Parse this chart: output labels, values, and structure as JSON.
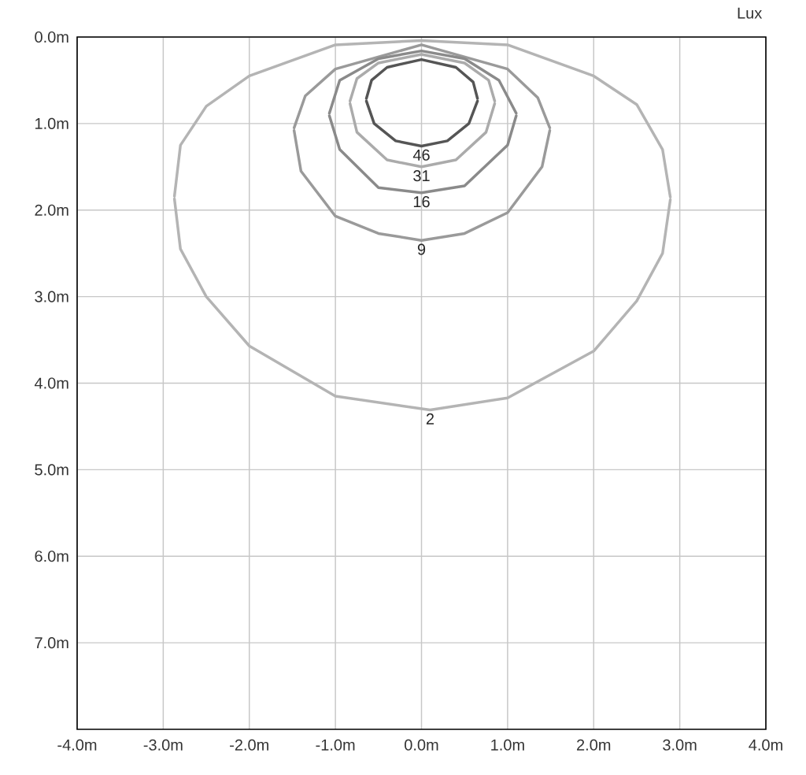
{
  "chart_data": {
    "type": "line",
    "annotations": [
      "Lux"
    ],
    "xlim": [
      -4,
      4
    ],
    "ylim": [
      8,
      0
    ],
    "xticks": [
      {
        "value": -4,
        "label": "-4.0m"
      },
      {
        "value": -3,
        "label": "-3.0m"
      },
      {
        "value": -2,
        "label": "-2.0m"
      },
      {
        "value": -1,
        "label": "-1.0m"
      },
      {
        "value": 0,
        "label": "0.0m"
      },
      {
        "value": 1,
        "label": "1.0m"
      },
      {
        "value": 2,
        "label": "2.0m"
      },
      {
        "value": 3,
        "label": "3.0m"
      },
      {
        "value": 4,
        "label": "4.0m"
      }
    ],
    "yticks": [
      {
        "value": 0,
        "label": "0.0m"
      },
      {
        "value": 1,
        "label": "1.0m"
      },
      {
        "value": 2,
        "label": "2.0m"
      },
      {
        "value": 3,
        "label": "3.0m"
      },
      {
        "value": 4,
        "label": "4.0m"
      },
      {
        "value": 5,
        "label": "5.0m"
      },
      {
        "value": 6,
        "label": "6.0m"
      },
      {
        "value": 7,
        "label": "7.0m"
      }
    ],
    "grid": true,
    "series": [
      {
        "color": "#b4b4b4",
        "x": [
          -2.87,
          -2.8,
          -2.5,
          -2,
          -1,
          0,
          1,
          2,
          2.5,
          2.8,
          2.89
        ],
        "values": [
          1.84,
          1.25,
          0.8,
          0.45,
          0.09,
          0.04,
          0.09,
          0.45,
          0.78,
          1.3,
          1.85
        ]
      },
      {
        "name": "2",
        "color": "#b4b4b4",
        "x": [
          -2.87,
          -2.8,
          -2.5,
          -2,
          -1,
          0.1,
          1,
          2,
          2.5,
          2.8,
          2.89
        ],
        "values": [
          1.87,
          2.45,
          3.0,
          3.57,
          4.15,
          4.31,
          4.17,
          3.63,
          3.05,
          2.5,
          1.88
        ]
      },
      {
        "color": "#9a9a9a",
        "x": [
          -1.48,
          -1.35,
          -1,
          0,
          1,
          1.35,
          1.49
        ],
        "values": [
          1.05,
          0.68,
          0.37,
          0.09,
          0.37,
          0.7,
          1.05
        ]
      },
      {
        "name": "9",
        "color": "#9a9a9a",
        "x": [
          -1.48,
          -1.4,
          -1,
          -0.5,
          0,
          0.5,
          1,
          1.4,
          1.49
        ],
        "values": [
          1.08,
          1.55,
          2.07,
          2.27,
          2.35,
          2.27,
          2.03,
          1.5,
          1.08
        ]
      },
      {
        "color": "#8a8a8a",
        "x": [
          -1.07,
          -0.95,
          -0.5,
          0,
          0.5,
          0.9,
          1.1
        ],
        "values": [
          0.88,
          0.5,
          0.25,
          0.16,
          0.25,
          0.5,
          0.88
        ]
      },
      {
        "name": "16",
        "color": "#8a8a8a",
        "x": [
          -1.07,
          -0.95,
          -0.5,
          0,
          0.5,
          1.0,
          1.1
        ],
        "values": [
          0.91,
          1.3,
          1.74,
          1.8,
          1.72,
          1.25,
          0.91
        ]
      },
      {
        "color": "#ababab",
        "x": [
          -0.83,
          -0.75,
          -0.5,
          0,
          0.5,
          0.78,
          0.85
        ],
        "values": [
          0.74,
          0.48,
          0.3,
          0.2,
          0.3,
          0.5,
          0.74
        ]
      },
      {
        "name": "31",
        "color": "#ababab",
        "x": [
          -0.83,
          -0.75,
          -0.4,
          0,
          0.4,
          0.75,
          0.85
        ],
        "values": [
          0.77,
          1.1,
          1.42,
          1.5,
          1.42,
          1.1,
          0.77
        ]
      },
      {
        "color": "#555555",
        "x": [
          -0.64,
          -0.58,
          -0.4,
          0,
          0.4,
          0.6,
          0.65
        ],
        "values": [
          0.71,
          0.5,
          0.35,
          0.26,
          0.35,
          0.52,
          0.71
        ]
      },
      {
        "name": "46",
        "color": "#555555",
        "x": [
          -0.64,
          -0.55,
          -0.3,
          0,
          0.3,
          0.55,
          0.65
        ],
        "values": [
          0.74,
          1.0,
          1.2,
          1.26,
          1.2,
          1.0,
          0.74
        ]
      }
    ]
  }
}
